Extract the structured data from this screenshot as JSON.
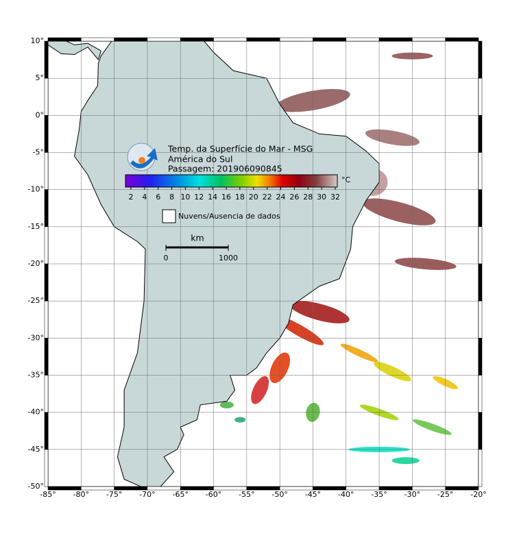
{
  "map": {
    "lon_range": [
      -85,
      -20
    ],
    "lat_range": [
      -50,
      10
    ],
    "lon_ticks": [
      {
        "value": -85,
        "label": "-85°"
      },
      {
        "value": -80,
        "label": "-80°"
      },
      {
        "value": -75,
        "label": "-75°"
      },
      {
        "value": -70,
        "label": "-70°"
      },
      {
        "value": -65,
        "label": "-65°"
      },
      {
        "value": -60,
        "label": "-60°"
      },
      {
        "value": -55,
        "label": "-55°"
      },
      {
        "value": -50,
        "label": "-50°"
      },
      {
        "value": -45,
        "label": "-45°"
      },
      {
        "value": -40,
        "label": "-40°"
      },
      {
        "value": -35,
        "label": "-35°"
      },
      {
        "value": -30,
        "label": "-30°"
      },
      {
        "value": -25,
        "label": "-25°"
      },
      {
        "value": -20,
        "label": "-20°"
      }
    ],
    "lat_ticks": [
      {
        "value": 10,
        "label": "10°"
      },
      {
        "value": 5,
        "label": "5°"
      },
      {
        "value": 0,
        "label": "0°"
      },
      {
        "value": -5,
        "label": "-5°"
      },
      {
        "value": -10,
        "label": "-10°"
      },
      {
        "value": -15,
        "label": "-15°"
      },
      {
        "value": -20,
        "label": "-20°"
      },
      {
        "value": -25,
        "label": "-25°"
      },
      {
        "value": -30,
        "label": "-30°"
      },
      {
        "value": -35,
        "label": "-35°"
      },
      {
        "value": -40,
        "label": "-40°"
      },
      {
        "value": -45,
        "label": "-45°"
      },
      {
        "value": -50,
        "label": "-50°"
      }
    ],
    "legend": {
      "title": "Temp. da Superfície do Mar - MSG",
      "region": "América do Sul",
      "pass": "Passagem: 201906090845",
      "colorbar": {
        "range": [
          1.2,
          32.3
        ],
        "ticks": [
          2,
          4,
          6,
          8,
          10,
          12,
          14,
          16,
          18,
          20,
          22,
          24,
          26,
          28,
          30,
          32
        ],
        "unit": "°C"
      },
      "clouds": "Nuvens/Ausencia de dados",
      "scale": {
        "unit": "km",
        "ticks": [
          0,
          1000
        ]
      }
    }
  }
}
